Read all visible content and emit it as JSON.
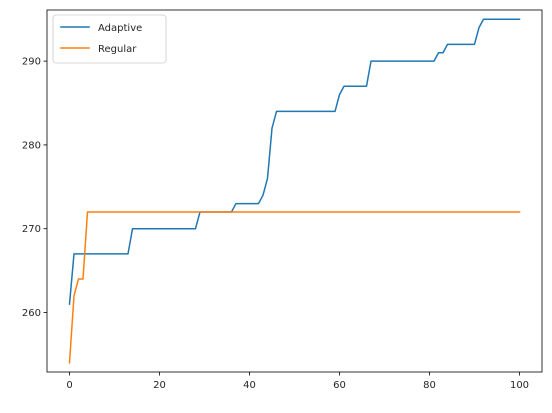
{
  "chart_data": {
    "type": "line",
    "title": "",
    "xlabel": "",
    "ylabel": "",
    "xlim": [
      -5,
      105
    ],
    "ylim": [
      252.9,
      296.1
    ],
    "xticks": [
      0,
      20,
      40,
      60,
      80,
      100
    ],
    "yticks": [
      260,
      270,
      280,
      290
    ],
    "grid": false,
    "legend_position": "upper-left",
    "series": [
      {
        "name": "Adaptive",
        "color": "#1f77b4",
        "x": [
          0,
          1,
          13,
          14,
          28,
          29,
          30,
          36,
          37,
          42,
          43,
          44,
          45,
          46,
          59,
          60,
          61,
          66,
          67,
          81,
          82,
          83,
          84,
          90,
          91,
          92,
          100
        ],
        "y": [
          261,
          267,
          267,
          270,
          270,
          272,
          272,
          272,
          273,
          273,
          274,
          276,
          282,
          284,
          284,
          286,
          287,
          287,
          290,
          290,
          291,
          291,
          292,
          292,
          294,
          295,
          295
        ]
      },
      {
        "name": "Regular",
        "color": "#ff7f0e",
        "x": [
          0,
          1,
          2,
          3,
          4,
          100
        ],
        "y": [
          254,
          262,
          264,
          264,
          272,
          272
        ]
      }
    ]
  }
}
